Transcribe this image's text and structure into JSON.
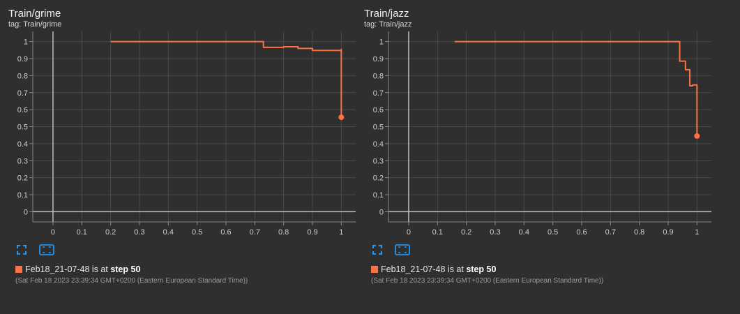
{
  "theme": {
    "background": "#2f2f2f",
    "grid": "#4a4a4a",
    "axis": "#bdbdbd",
    "series_color": "#ff7043",
    "tool_icon_color": "#2196f3"
  },
  "chart_data": [
    {
      "type": "line",
      "title": "Train/grime",
      "subtitle": "tag: Train/grime",
      "xlim": [
        -0.07,
        1.05
      ],
      "ylim": [
        -0.06,
        1.06
      ],
      "xticks": [
        0,
        0.1,
        0.2,
        0.3,
        0.4,
        0.5,
        0.6,
        0.7,
        0.8,
        0.9,
        1
      ],
      "yticks": [
        0,
        0.1,
        0.2,
        0.3,
        0.4,
        0.5,
        0.6,
        0.7,
        0.8,
        0.9,
        1
      ],
      "grid": true,
      "series": [
        {
          "name": "Feb18_21-07-48",
          "color": "#ff7043",
          "step": "post",
          "x": [
            0.2,
            0.73,
            0.73,
            0.8,
            0.84,
            0.85,
            0.9,
            0.9,
            1.0,
            1.0
          ],
          "y": [
            1.0,
            1.0,
            0.966,
            0.97,
            0.97,
            0.96,
            0.96,
            0.948,
            0.955,
            0.555
          ],
          "end_marker": [
            1.0,
            0.555
          ]
        }
      ],
      "legend": {
        "run": "Feb18_21-07-48",
        "text_mid": " is at ",
        "step_label": "step 50",
        "timestamp": "(Sat Feb 18 2023 23:39:34 GMT+0200 (Eastern European Standard Time))"
      }
    },
    {
      "type": "line",
      "title": "Train/jazz",
      "subtitle": "tag: Train/jazz",
      "xlim": [
        -0.07,
        1.05
      ],
      "ylim": [
        -0.06,
        1.06
      ],
      "xticks": [
        0,
        0.1,
        0.2,
        0.3,
        0.4,
        0.5,
        0.6,
        0.7,
        0.8,
        0.9,
        1
      ],
      "yticks": [
        0,
        0.1,
        0.2,
        0.3,
        0.4,
        0.5,
        0.6,
        0.7,
        0.8,
        0.9,
        1
      ],
      "grid": true,
      "series": [
        {
          "name": "Feb18_21-07-48",
          "color": "#ff7043",
          "step": "post",
          "x": [
            0.16,
            0.94,
            0.94,
            0.96,
            0.975,
            0.985,
            1.0
          ],
          "y": [
            1.0,
            1.0,
            0.885,
            0.835,
            0.74,
            0.745,
            0.445
          ],
          "end_marker": [
            1.0,
            0.445
          ]
        }
      ],
      "legend": {
        "run": "Feb18_21-07-48",
        "text_mid": " is at ",
        "step_label": "step 50",
        "timestamp": "(Sat Feb 18 2023 23:39:34 GMT+0200 (Eastern European Standard Time))"
      }
    }
  ],
  "toolbar": {
    "icons": [
      "fullscreen-icon",
      "fit-domain-icon"
    ]
  }
}
